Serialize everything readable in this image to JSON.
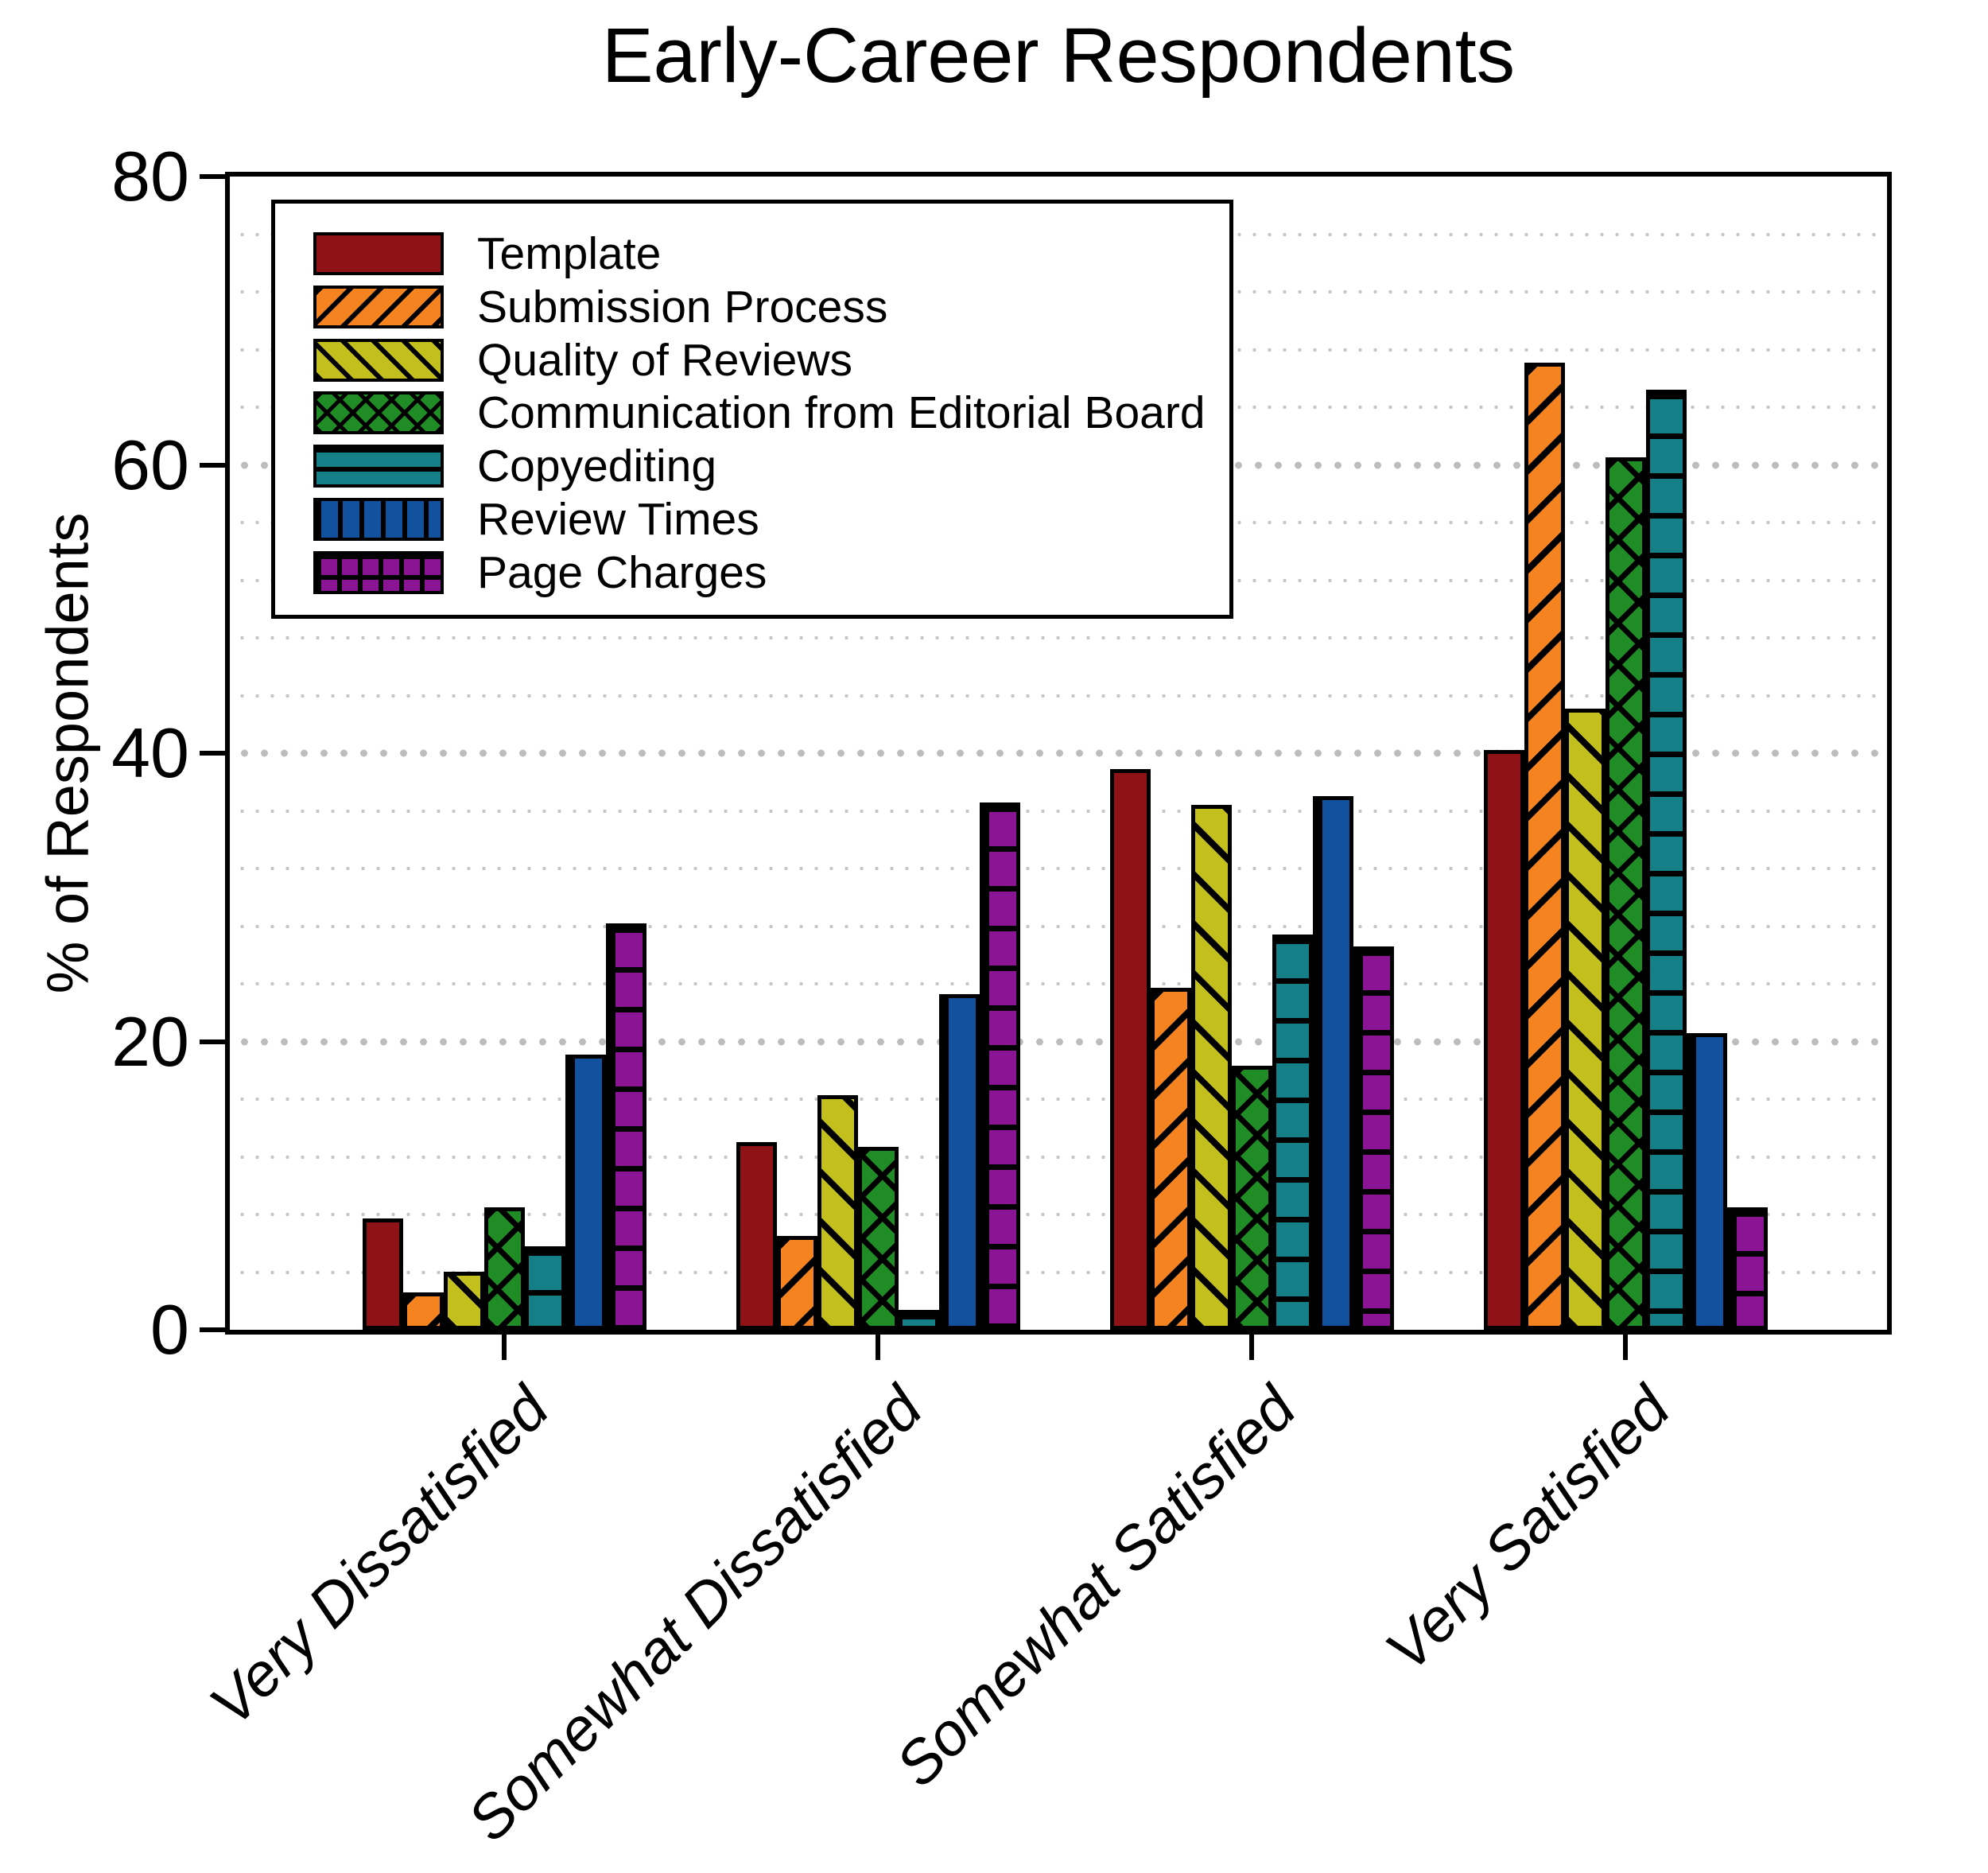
{
  "chart_data": {
    "type": "bar",
    "title": "Early-Career Respondents",
    "xlabel": "",
    "ylabel": "% of Respondents",
    "ylim": [
      0,
      80
    ],
    "yticks": [
      0,
      20,
      40,
      60,
      80
    ],
    "grid": {
      "style": "dotted",
      "minor_step": 4,
      "major_step": 20,
      "minor_color": "#c6c6c6",
      "major_color": "#bdbdbd"
    },
    "legend_position": "upper left",
    "categories": [
      "Very Dissatisfied",
      "Somewhat Dissatisfied",
      "Somewhat Satisfied",
      "Very Satisfied"
    ],
    "series": [
      {
        "name": "Template",
        "color": "#8e1216",
        "pattern": "solid",
        "values": [
          7.7,
          13.0,
          38.9,
          40.2
        ]
      },
      {
        "name": "Submission Process",
        "color": "#f5831f",
        "pattern": "diagonal-forward",
        "values": [
          2.6,
          6.5,
          23.7,
          67.1
        ]
      },
      {
        "name": "Quality of Reviews",
        "color": "#c3bf1d",
        "pattern": "diagonal-backward",
        "values": [
          4.0,
          16.3,
          36.4,
          43.1
        ]
      },
      {
        "name": "Communication from Editorial Board",
        "color": "#1f8c25",
        "pattern": "crosshatch",
        "values": [
          8.5,
          12.7,
          18.3,
          60.5
        ]
      },
      {
        "name": "Copyediting",
        "color": "#147f87",
        "pattern": "horizontal-lines",
        "values": [
          5.8,
          1.4,
          27.4,
          65.2
        ]
      },
      {
        "name": "Review Times",
        "color": "#11519e",
        "pattern": "vertical-lines",
        "values": [
          19.1,
          23.3,
          37.0,
          20.6
        ]
      },
      {
        "name": "Page Charges",
        "color": "#8b1494",
        "pattern": "grid",
        "values": [
          28.2,
          36.6,
          26.6,
          8.5
        ]
      }
    ]
  }
}
